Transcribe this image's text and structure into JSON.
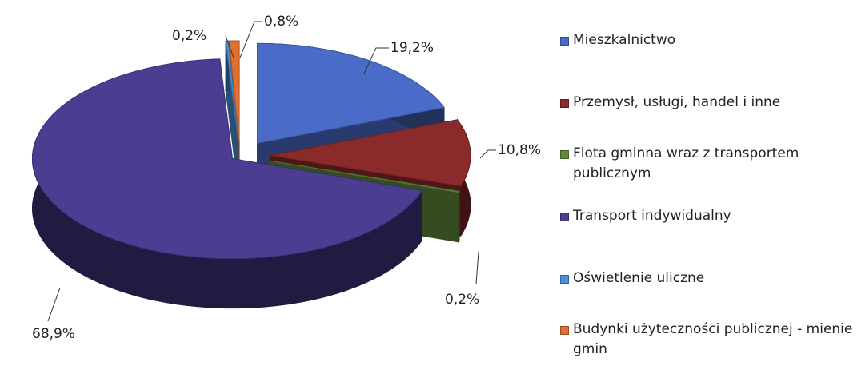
{
  "chart_data": {
    "type": "pie",
    "categories": [
      "Mieszkalnictwo",
      "Przemysł, usługi, handel i inne",
      "Flota gminna wraz z transportem publicznym",
      "Transport indywidualny",
      "Oświetlenie uliczne",
      "Budynki użyteczności publicznej - mienie gmin"
    ],
    "values": [
      19.2,
      10.8,
      0.2,
      68.9,
      0.2,
      0.8
    ],
    "value_labels": [
      "19,2%",
      "10,8%",
      "0,2%",
      "68,9%",
      "0,2%",
      "0,8%"
    ],
    "colors": [
      "#4a6cc8",
      "#8b2a2a",
      "#5e8a3a",
      "#4a3d92",
      "#4a90d9",
      "#e07030"
    ]
  }
}
